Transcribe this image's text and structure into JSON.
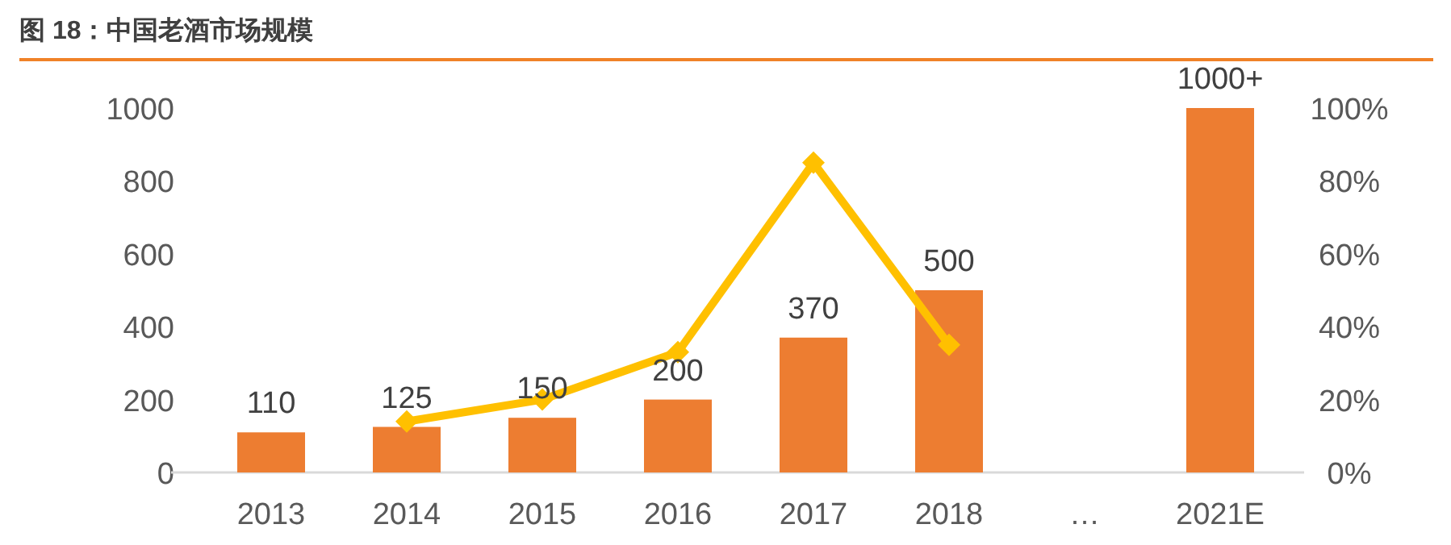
{
  "chart_data": {
    "type": "bar",
    "title": "图 18：中国老酒市场规模",
    "categories": [
      "2013",
      "2014",
      "2015",
      "2016",
      "2017",
      "2018",
      "…",
      "2021E"
    ],
    "series": [
      {
        "color": "#ed7d31",
        "values": [
          110,
          125,
          150,
          200,
          370,
          500,
          null,
          1000
        ],
        "value_labels": [
          "110",
          "125",
          "150",
          "200",
          "370",
          "500",
          null,
          "1000+"
        ]
      },
      {
        "type": "line",
        "axis": "y2",
        "color": "#ffc000",
        "values": [
          null,
          14,
          20,
          33,
          85,
          35,
          null,
          null
        ]
      }
    ],
    "marker": "diamond",
    "grid": false,
    "ylim": [
      0,
      1000
    ],
    "yticks": [
      0,
      200,
      400,
      600,
      800,
      1000
    ],
    "y2lim": [
      0,
      100
    ],
    "y2ticks": [
      {
        "value": 0,
        "label": "0%"
      },
      {
        "value": 20,
        "label": "20%"
      },
      {
        "value": 40,
        "label": "40%"
      },
      {
        "value": 60,
        "label": "60%"
      },
      {
        "value": 80,
        "label": "80%"
      },
      {
        "value": 100,
        "label": "100%"
      }
    ]
  }
}
